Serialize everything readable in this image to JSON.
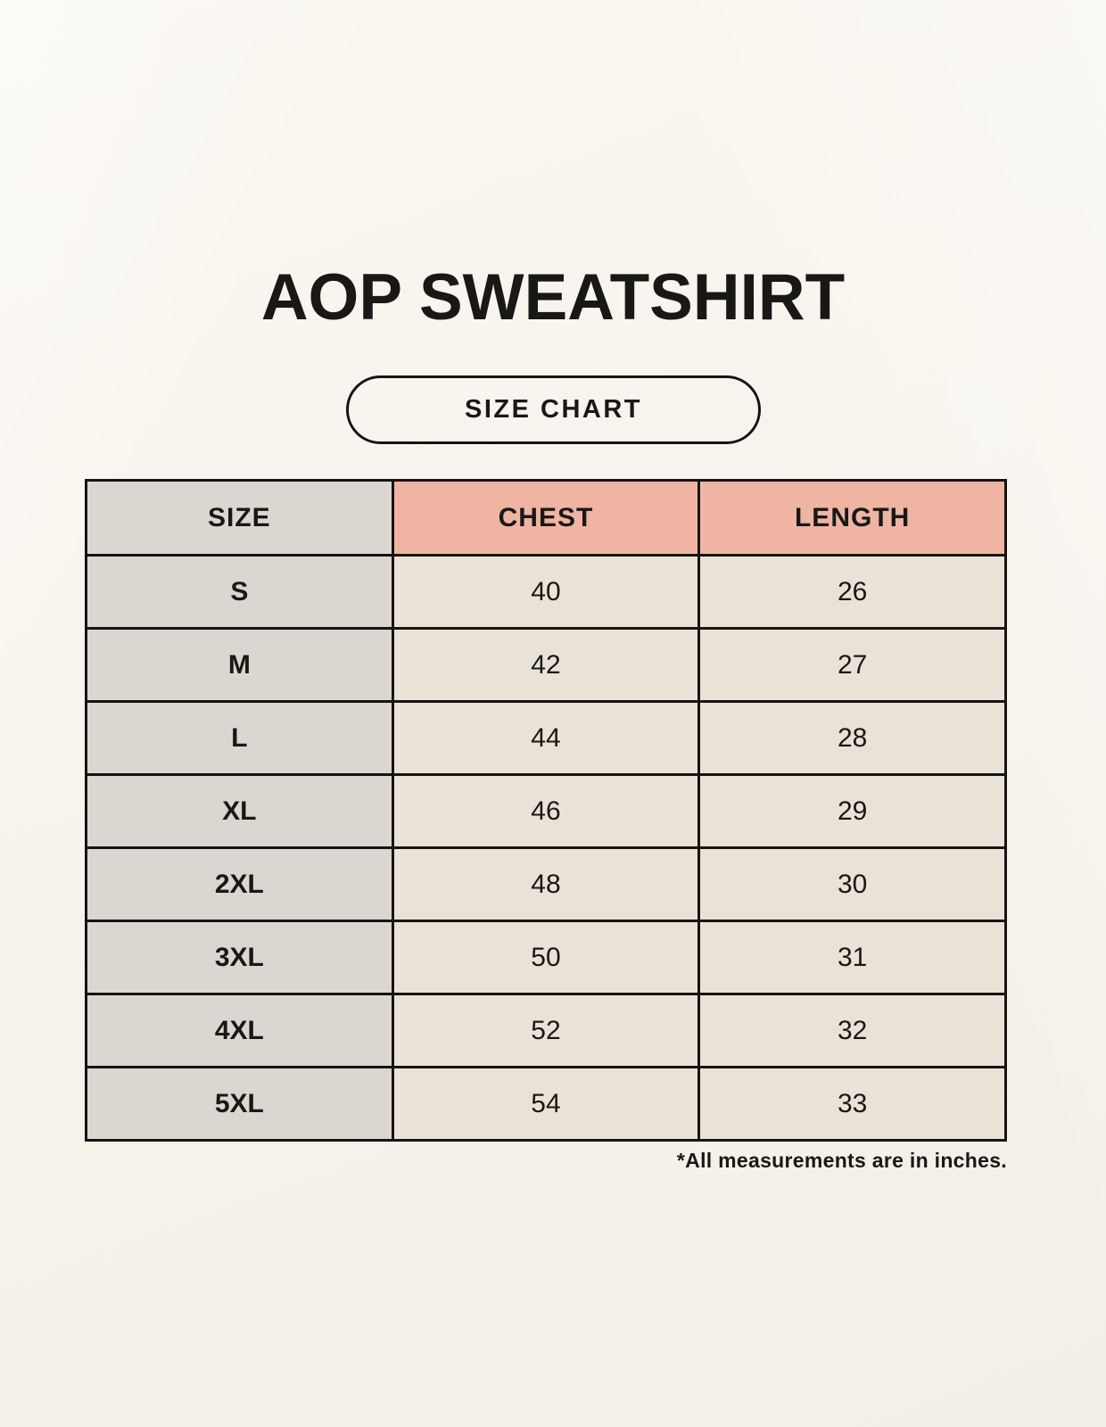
{
  "page": {
    "title": "AOP SWEATSHIRT",
    "size_chart_badge": "SIZE CHART",
    "footnote": "*All measurements are in inches."
  },
  "chart_data": {
    "type": "table",
    "title": "AOP SWEATSHIRT",
    "subtitle": "SIZE CHART",
    "columns": [
      "SIZE",
      "CHEST",
      "LENGTH"
    ],
    "rows": [
      [
        "S",
        40,
        26
      ],
      [
        "M",
        42,
        27
      ],
      [
        "L",
        44,
        28
      ],
      [
        "XL",
        46,
        29
      ],
      [
        "2XL",
        48,
        30
      ],
      [
        "3XL",
        50,
        31
      ],
      [
        "4XL",
        52,
        32
      ],
      [
        "5XL",
        54,
        33
      ]
    ],
    "units": "inches",
    "note": "*All measurements are in inches."
  },
  "colors": {
    "page_bg": "#f7f3ec",
    "size_column_bg": "#dcd6d0",
    "header_accent_bg": "#f0b4a3",
    "data_cell_bg": "#e9e2d6",
    "border": "#161412",
    "text": "#191817"
  }
}
